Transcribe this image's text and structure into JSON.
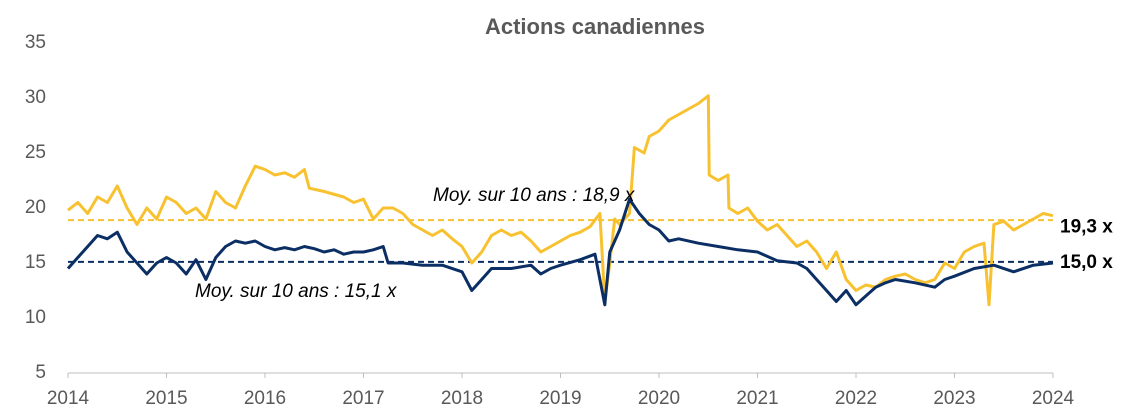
{
  "chart_data": {
    "type": "line",
    "title": "Actions canadiennes",
    "xlim": [
      2014,
      2024
    ],
    "xticks": [
      2014,
      2015,
      2016,
      2017,
      2018,
      2019,
      2020,
      2021,
      2022,
      2023,
      2024
    ],
    "ylim": [
      5,
      35
    ],
    "yticks": [
      5,
      10,
      15,
      20,
      25,
      30,
      35
    ],
    "grid": false,
    "series": [
      {
        "color": "#f8c12f",
        "end_label": "19,3 x",
        "x": [
          2014.0,
          2014.1,
          2014.2,
          2014.3,
          2014.4,
          2014.5,
          2014.6,
          2014.7,
          2014.8,
          2014.9,
          2015.0,
          2015.1,
          2015.2,
          2015.3,
          2015.4,
          2015.5,
          2015.6,
          2015.7,
          2015.8,
          2015.9,
          2016.0,
          2016.1,
          2016.2,
          2016.3,
          2016.4,
          2016.45,
          2016.6,
          2016.8,
          2016.9,
          2017.0,
          2017.1,
          2017.2,
          2017.3,
          2017.4,
          2017.5,
          2017.6,
          2017.7,
          2017.8,
          2017.9,
          2018.0,
          2018.1,
          2018.2,
          2018.3,
          2018.4,
          2018.5,
          2018.6,
          2018.7,
          2018.8,
          2018.9,
          2019.0,
          2019.1,
          2019.2,
          2019.3,
          2019.4,
          2019.45,
          2019.5,
          2019.55,
          2019.6,
          2019.7,
          2019.75,
          2019.85,
          2019.9,
          2020.0,
          2020.1,
          2020.2,
          2020.3,
          2020.4,
          2020.5,
          2020.51,
          2020.6,
          2020.7,
          2020.71,
          2020.8,
          2020.9,
          2021.0,
          2021.1,
          2021.2,
          2021.3,
          2021.4,
          2021.5,
          2021.6,
          2021.7,
          2021.8,
          2021.9,
          2022.0,
          2022.1,
          2022.2,
          2022.3,
          2022.4,
          2022.5,
          2022.6,
          2022.7,
          2022.8,
          2022.9,
          2023.0,
          2023.1,
          2023.2,
          2023.3,
          2023.35,
          2023.4,
          2023.5,
          2023.6,
          2023.7,
          2023.8,
          2023.9,
          2024.0
        ],
        "values": [
          19.8,
          20.5,
          19.5,
          21,
          20.5,
          22,
          20,
          18.5,
          20,
          19,
          21,
          20.5,
          19.5,
          20,
          19,
          21.5,
          20.5,
          20,
          22,
          23.8,
          23.5,
          23,
          23.2,
          22.8,
          23.5,
          21.8,
          21.5,
          21,
          20.5,
          20.8,
          19,
          20,
          20,
          19.5,
          18.5,
          18,
          17.5,
          18,
          17.2,
          16.5,
          15,
          16,
          17.5,
          18,
          17.5,
          17.8,
          17,
          16,
          16.5,
          17,
          17.5,
          17.8,
          18.3,
          19.5,
          11.5,
          15,
          19,
          18.5,
          19.5,
          25.5,
          25,
          26.5,
          27,
          28,
          28.5,
          29,
          29.5,
          30.2,
          23,
          22.5,
          23,
          20,
          19.5,
          20,
          18.8,
          18,
          18.5,
          17.5,
          16.5,
          17,
          16,
          14.5,
          16,
          13.5,
          12.5,
          13,
          12.8,
          13.5,
          13.8,
          14,
          13.5,
          13.2,
          13.5,
          15,
          14.5,
          16,
          16.5,
          16.8,
          11.2,
          18.5,
          18.8,
          18,
          18.5,
          19,
          19.5,
          19.3
        ]
      },
      {
        "color": "#0b2f64",
        "end_label": "15,0 x",
        "x": [
          2014.0,
          2014.1,
          2014.2,
          2014.3,
          2014.4,
          2014.5,
          2014.6,
          2014.7,
          2014.8,
          2014.9,
          2015.0,
          2015.1,
          2015.2,
          2015.3,
          2015.4,
          2015.5,
          2015.6,
          2015.7,
          2015.8,
          2015.9,
          2016.0,
          2016.1,
          2016.2,
          2016.3,
          2016.4,
          2016.5,
          2016.6,
          2016.7,
          2016.8,
          2016.9,
          2017.0,
          2017.1,
          2017.2,
          2017.25,
          2017.4,
          2017.6,
          2017.8,
          2018.0,
          2018.1,
          2018.2,
          2018.3,
          2018.5,
          2018.7,
          2018.8,
          2018.9,
          2019.0,
          2019.2,
          2019.35,
          2019.45,
          2019.5,
          2019.6,
          2019.7,
          2019.8,
          2019.9,
          2020.0,
          2020.1,
          2020.2,
          2020.4,
          2020.6,
          2020.8,
          2021.0,
          2021.2,
          2021.4,
          2021.5,
          2021.6,
          2021.7,
          2021.8,
          2021.9,
          2022.0,
          2022.1,
          2022.2,
          2022.3,
          2022.4,
          2022.6,
          2022.8,
          2022.9,
          2023.0,
          2023.2,
          2023.4,
          2023.6,
          2023.8,
          2024.0
        ],
        "values": [
          14.5,
          15.5,
          16.5,
          17.5,
          17.2,
          17.8,
          16,
          15,
          14,
          15,
          15.5,
          15,
          14,
          15.3,
          13.5,
          15.5,
          16.5,
          17,
          16.8,
          17,
          16.5,
          16.2,
          16.4,
          16.2,
          16.5,
          16.3,
          16,
          16.2,
          15.8,
          16,
          16,
          16.2,
          16.5,
          15,
          15,
          14.8,
          14.8,
          14.2,
          12.5,
          13.5,
          14.5,
          14.5,
          14.8,
          14,
          14.5,
          14.8,
          15.3,
          15.8,
          11.2,
          16,
          18,
          20.8,
          19.5,
          18.5,
          18,
          17,
          17.2,
          16.8,
          16.5,
          16.2,
          16,
          15.2,
          15,
          14.5,
          13.5,
          12.5,
          11.5,
          12.5,
          11.2,
          12,
          12.8,
          13.2,
          13.5,
          13.2,
          12.8,
          13.5,
          13.8,
          14.5,
          14.8,
          14.2,
          14.8,
          15.0
        ]
      }
    ],
    "annotations": [
      {
        "text": "Moy. sur 10 ans : 18,9 x",
        "value": 18.9,
        "color": "#f8c12f"
      },
      {
        "text": "Moy. sur 10 ans : 15,1 x",
        "value": 15.1,
        "color": "#0b2f64"
      }
    ]
  }
}
